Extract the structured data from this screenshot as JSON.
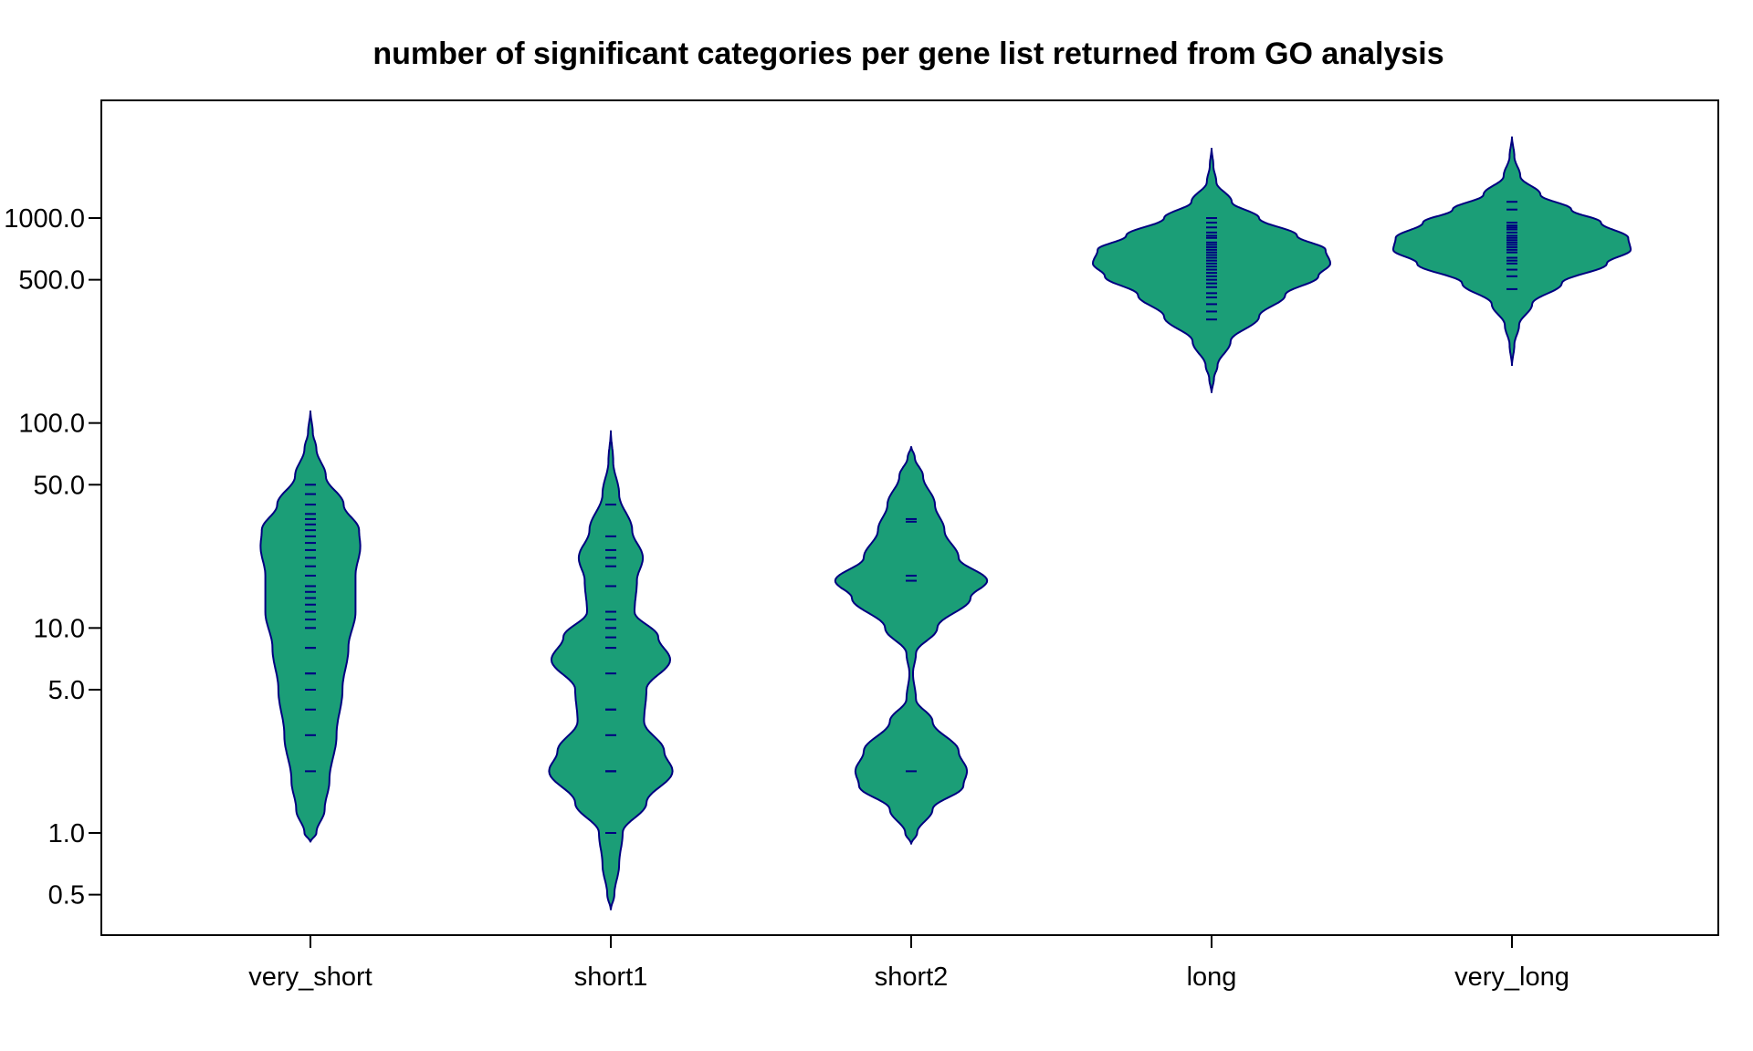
{
  "chart_data": {
    "type": "violin",
    "title": "number of significant categories per gene list returned from GO analysis",
    "xlabel": "",
    "ylabel": "",
    "y_scale": "log",
    "ylim": [
      0.38,
      3200
    ],
    "y_ticks": [
      {
        "value": 0.5,
        "label": "0.5"
      },
      {
        "value": 1,
        "label": "1.0"
      },
      {
        "value": 5,
        "label": "5.0"
      },
      {
        "value": 10,
        "label": "10.0"
      },
      {
        "value": 50,
        "label": "50.0"
      },
      {
        "value": 100,
        "label": "100.0"
      },
      {
        "value": 500,
        "label": "500.0"
      },
      {
        "value": 1000,
        "label": "1000.0"
      }
    ],
    "categories": [
      "very_short",
      "short1",
      "short2",
      "long",
      "very_long"
    ],
    "grid": false,
    "colors": {
      "fill": "#1b9e77",
      "outline": "#000080",
      "ticks": "#000080"
    },
    "series": [
      {
        "category": "very_short",
        "values": [
          2,
          3,
          4,
          5,
          6,
          6,
          8,
          8,
          10,
          11,
          12,
          13,
          14,
          15,
          16,
          18,
          20,
          22,
          24,
          26,
          28,
          30,
          32,
          34,
          36,
          40,
          45,
          50
        ],
        "density": [
          [
            0.9,
            0
          ],
          [
            1.0,
            0.05
          ],
          [
            1.3,
            0.12
          ],
          [
            1.8,
            0.16
          ],
          [
            3,
            0.22
          ],
          [
            5,
            0.27
          ],
          [
            8,
            0.32
          ],
          [
            12,
            0.38
          ],
          [
            18,
            0.38
          ],
          [
            25,
            0.42
          ],
          [
            30,
            0.41
          ],
          [
            40,
            0.28
          ],
          [
            55,
            0.13
          ],
          [
            75,
            0.05
          ],
          [
            90,
            0.02
          ],
          [
            115,
            0
          ]
        ]
      },
      {
        "category": "short1",
        "values": [
          1,
          2,
          2,
          2,
          3,
          4,
          4,
          6,
          8,
          9,
          10,
          11,
          12,
          16,
          20,
          22,
          24,
          28,
          40
        ],
        "density": [
          [
            0.42,
            0
          ],
          [
            0.5,
            0.03
          ],
          [
            0.7,
            0.07
          ],
          [
            1.0,
            0.1
          ],
          [
            1.4,
            0.3
          ],
          [
            2,
            0.52
          ],
          [
            2.5,
            0.45
          ],
          [
            3.5,
            0.28
          ],
          [
            5,
            0.3
          ],
          [
            7,
            0.5
          ],
          [
            9,
            0.4
          ],
          [
            12,
            0.2
          ],
          [
            17,
            0.22
          ],
          [
            22,
            0.27
          ],
          [
            30,
            0.18
          ],
          [
            45,
            0.07
          ],
          [
            65,
            0.02
          ],
          [
            92,
            0
          ]
        ]
      },
      {
        "category": "short2",
        "values": [
          2,
          17,
          18,
          33,
          34
        ],
        "density": [
          [
            0.88,
            0
          ],
          [
            1.0,
            0.05
          ],
          [
            1.3,
            0.18
          ],
          [
            1.7,
            0.44
          ],
          [
            2,
            0.47
          ],
          [
            2.5,
            0.4
          ],
          [
            3.5,
            0.18
          ],
          [
            4.5,
            0.04
          ],
          [
            6,
            0.015
          ],
          [
            7.5,
            0.04
          ],
          [
            10,
            0.22
          ],
          [
            14,
            0.5
          ],
          [
            17,
            0.64
          ],
          [
            22,
            0.4
          ],
          [
            30,
            0.28
          ],
          [
            40,
            0.2
          ],
          [
            55,
            0.1
          ],
          [
            68,
            0.03
          ],
          [
            77,
            0
          ]
        ]
      },
      {
        "category": "long",
        "values": [
          320,
          350,
          380,
          410,
          430,
          460,
          480,
          500,
          520,
          540,
          560,
          580,
          600,
          620,
          640,
          660,
          680,
          700,
          720,
          740,
          760,
          800,
          820,
          850,
          900,
          950,
          1000
        ],
        "density": [
          [
            140,
            0
          ],
          [
            165,
            0.02
          ],
          [
            190,
            0.05
          ],
          [
            250,
            0.16
          ],
          [
            330,
            0.4
          ],
          [
            420,
            0.62
          ],
          [
            520,
            0.9
          ],
          [
            600,
            1.0
          ],
          [
            700,
            0.96
          ],
          [
            820,
            0.72
          ],
          [
            1000,
            0.4
          ],
          [
            1200,
            0.17
          ],
          [
            1500,
            0.04
          ],
          [
            1800,
            0.015
          ],
          [
            2200,
            0
          ]
        ]
      },
      {
        "category": "very_long",
        "values": [
          450,
          520,
          560,
          600,
          620,
          640,
          680,
          700,
          720,
          740,
          760,
          780,
          800,
          820,
          850,
          880,
          900,
          920,
          950,
          1100,
          1200
        ],
        "density": [
          [
            190,
            0
          ],
          [
            240,
            0.02
          ],
          [
            300,
            0.06
          ],
          [
            380,
            0.17
          ],
          [
            480,
            0.42
          ],
          [
            600,
            0.8
          ],
          [
            700,
            1.0
          ],
          [
            800,
            0.98
          ],
          [
            950,
            0.75
          ],
          [
            1100,
            0.5
          ],
          [
            1300,
            0.24
          ],
          [
            1600,
            0.07
          ],
          [
            2000,
            0.02
          ],
          [
            2500,
            0
          ]
        ]
      }
    ]
  }
}
